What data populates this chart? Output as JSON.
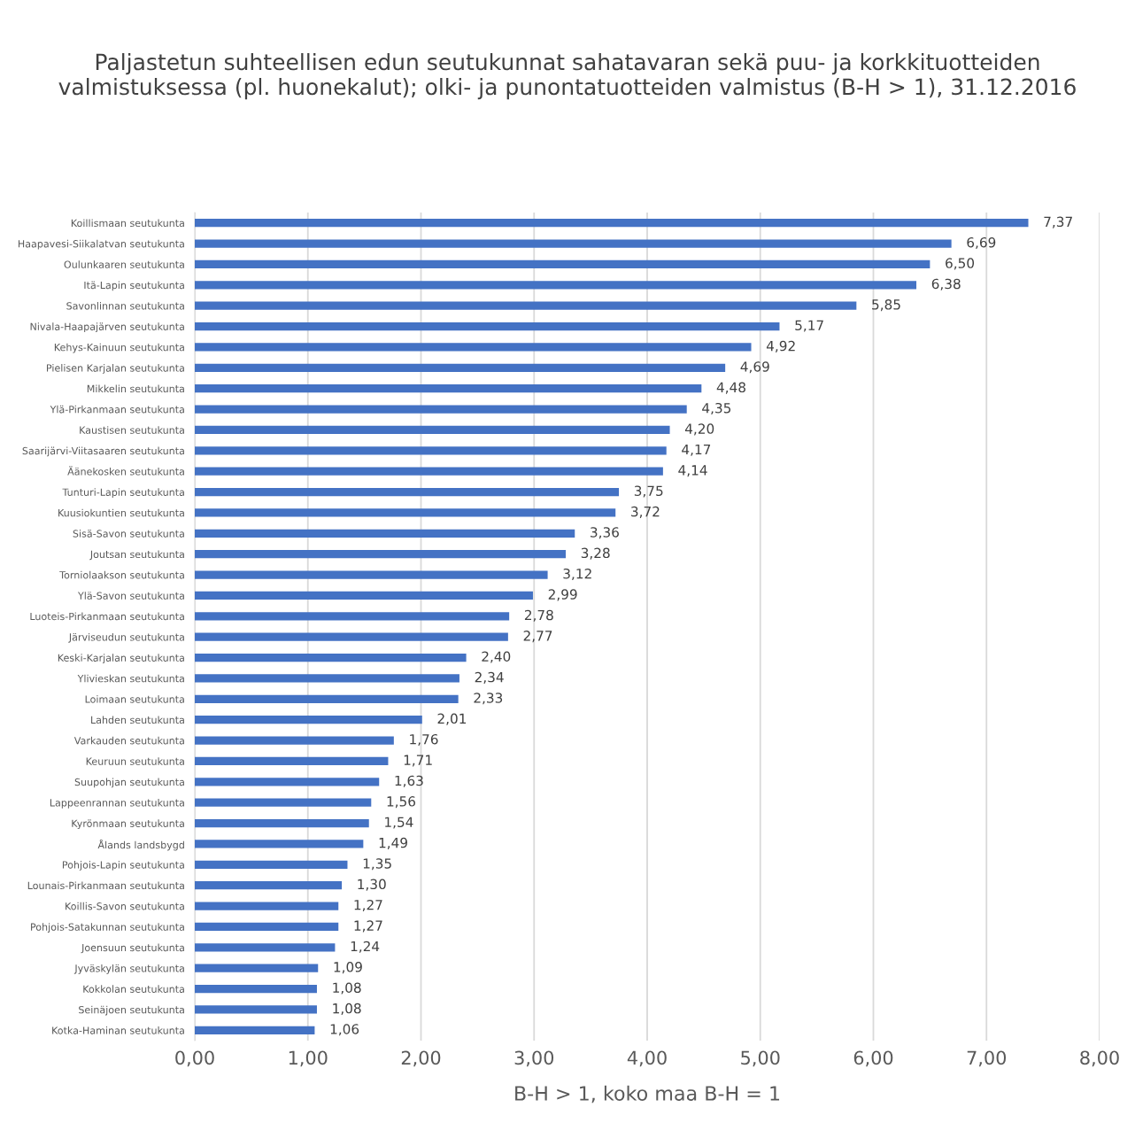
{
  "chart_data": {
    "type": "bar",
    "orientation": "horizontal",
    "title": "Paljastetun suhteellisen edun seutukunnat sahatavaran sekä puu- ja korkkituotteiden valmistuksessa (pl. huonekalut); olki- ja punontatuotteiden valmistus (B-H > 1), 31.12.2016",
    "xlabel": "B-H > 1, koko maa B-H = 1",
    "categories": [
      "Koillismaan seutukunta",
      "Haapavesi-Siikalatvan seutukunta",
      "Oulunkaaren seutukunta",
      "Itä-Lapin seutukunta",
      "Savonlinnan seutukunta",
      "Nivala-Haapajärven seutukunta",
      "Kehys-Kainuun seutukunta",
      "Pielisen Karjalan seutukunta",
      "Mikkelin seutukunta",
      "Ylä-Pirkanmaan seutukunta",
      "Kaustisen seutukunta",
      "Saarijärvi-Viitasaaren seutukunta",
      "Äänekosken seutukunta",
      "Tunturi-Lapin seutukunta",
      "Kuusiokuntien seutukunta",
      "Sisä-Savon seutukunta",
      "Joutsan seutukunta",
      "Torniolaakson seutukunta",
      "Ylä-Savon seutukunta",
      "Luoteis-Pirkanmaan seutukunta",
      "Järviseudun seutukunta",
      "Keski-Karjalan seutukunta",
      "Ylivieskan seutukunta",
      "Loimaan seutukunta",
      "Lahden seutukunta",
      "Varkauden seutukunta",
      "Keuruun seutukunta",
      "Suupohjan seutukunta",
      "Lappeenrannan seutukunta",
      "Kyrönmaan seutukunta",
      "Ålands landsbygd",
      "Pohjois-Lapin seutukunta",
      "Lounais-Pirkanmaan seutukunta",
      "Koillis-Savon seutukunta",
      "Pohjois-Satakunnan seutukunta",
      "Joensuun seutukunta",
      "Jyväskylän seutukunta",
      "Kokkolan seutukunta",
      "Seinäjoen seutukunta",
      "Kotka-Haminan seutukunta"
    ],
    "values": [
      7.37,
      6.69,
      6.5,
      6.38,
      5.85,
      5.17,
      4.92,
      4.69,
      4.48,
      4.35,
      4.2,
      4.17,
      4.14,
      3.75,
      3.72,
      3.36,
      3.28,
      3.12,
      2.99,
      2.78,
      2.77,
      2.4,
      2.34,
      2.33,
      2.01,
      1.76,
      1.71,
      1.63,
      1.56,
      1.54,
      1.49,
      1.35,
      1.3,
      1.27,
      1.27,
      1.24,
      1.09,
      1.08,
      1.08,
      1.06
    ],
    "value_labels": [
      "7,37",
      "6,69",
      "6,50",
      "6,38",
      "5,85",
      "5,17",
      "4,92",
      "4,69",
      "4,48",
      "4,35",
      "4,20",
      "4,17",
      "4,14",
      "3,75",
      "3,72",
      "3,36",
      "3,28",
      "3,12",
      "2,99",
      "2,78",
      "2,77",
      "2,40",
      "2,34",
      "2,33",
      "2,01",
      "1,76",
      "1,71",
      "1,63",
      "1,56",
      "1,54",
      "1,49",
      "1,35",
      "1,30",
      "1,27",
      "1,27",
      "1,24",
      "1,09",
      "1,08",
      "1,08",
      "1,06"
    ],
    "color": "#4472c4",
    "xlim": [
      0,
      8
    ],
    "xticks": [
      {
        "value": 0,
        "label": "0,00"
      },
      {
        "value": 1,
        "label": "1,00"
      },
      {
        "value": 2,
        "label": "2,00"
      },
      {
        "value": 3,
        "label": "3,00"
      },
      {
        "value": 4,
        "label": "4,00"
      },
      {
        "value": 5,
        "label": "5,00"
      },
      {
        "value": 6,
        "label": "6,00"
      },
      {
        "value": 7,
        "label": "7,00"
      },
      {
        "value": 8,
        "label": "8,00"
      }
    ],
    "grid": "x",
    "legend": false
  }
}
